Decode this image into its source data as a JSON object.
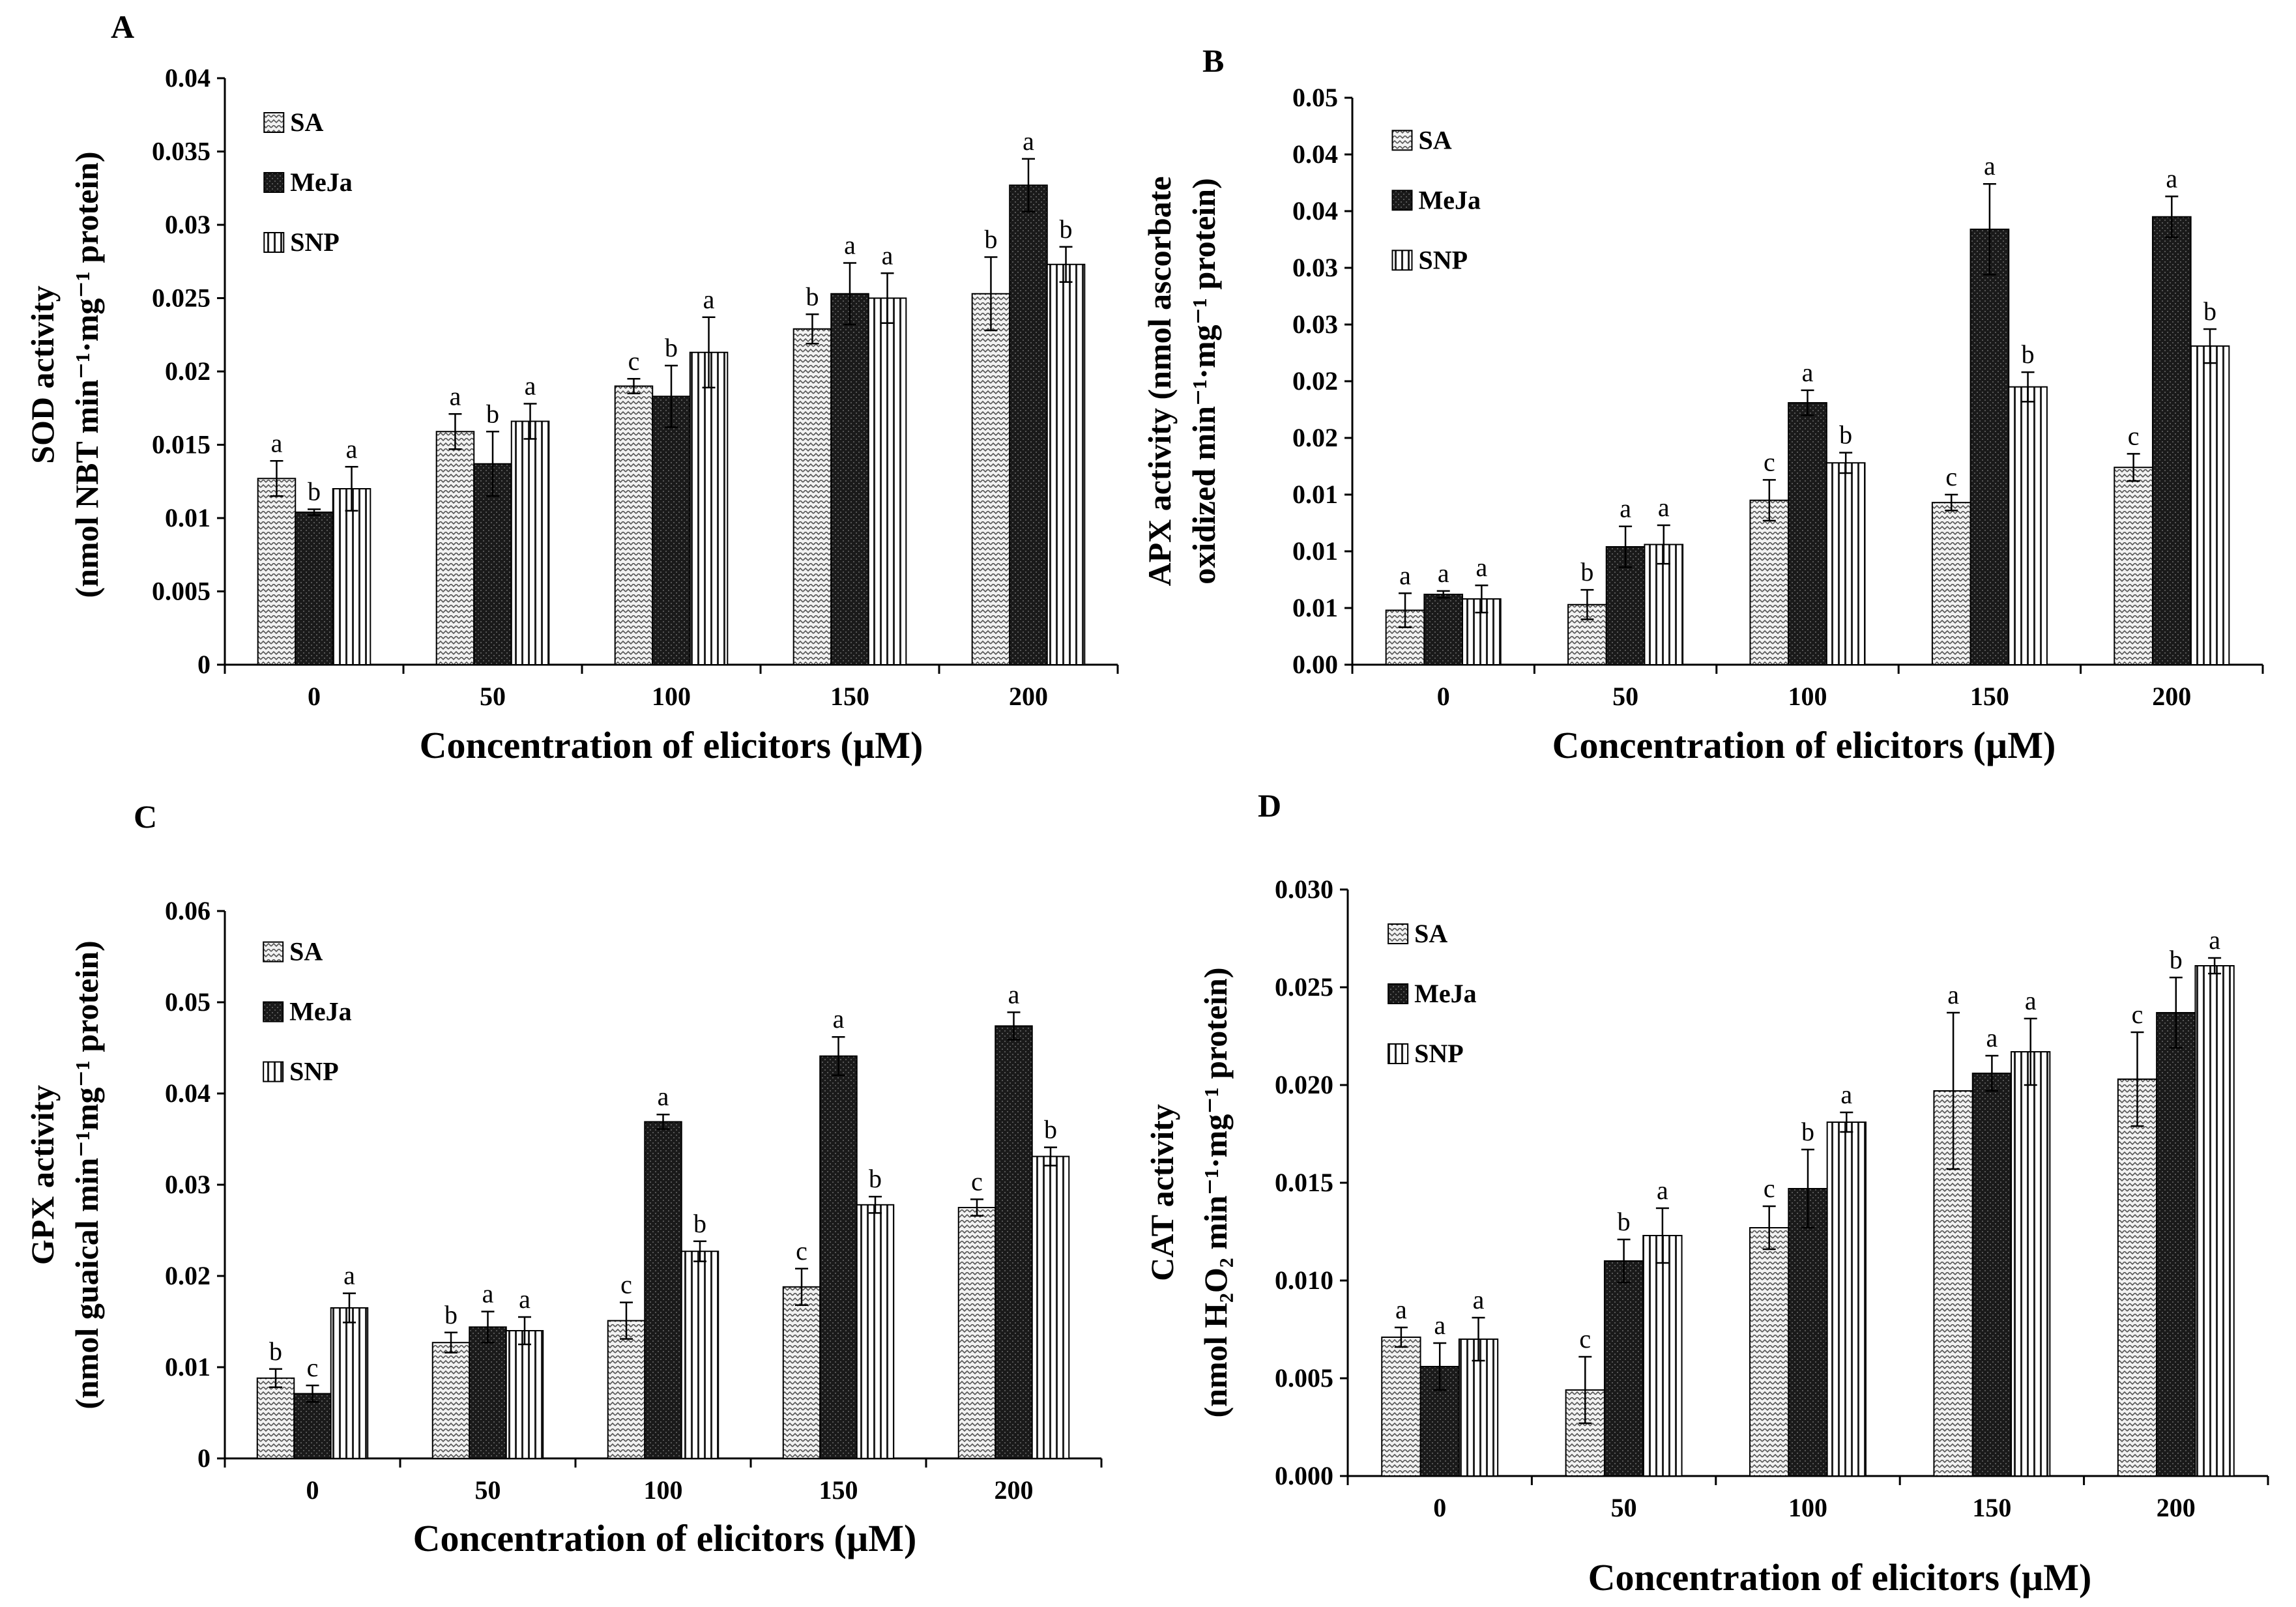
{
  "figure": {
    "series_styles": [
      {
        "name": "SA",
        "pattern": "zigzag-light"
      },
      {
        "name": "MeJa",
        "pattern": "dotted-dark"
      },
      {
        "name": "SNP",
        "pattern": "vertical-lines"
      }
    ],
    "colors": {
      "ink": "#000000",
      "background": "#ffffff",
      "dark_fill": "#1a1a1a"
    }
  },
  "chart_data": [
    {
      "type": "bar",
      "panel": "A",
      "xlabel": "Concentration  of elicitors (µM)",
      "ylabel_line1": "SOD activity",
      "ylabel_line2": "(nmol NBT min⁻¹·mg⁻¹ protein)",
      "categories": [
        "0",
        "50",
        "100",
        "150",
        "200"
      ],
      "ylim": [
        0,
        0.04
      ],
      "yticks": [
        0,
        0.005,
        0.01,
        0.015,
        0.02,
        0.025,
        0.03,
        0.035,
        0.04
      ],
      "ytick_labels": [
        "0",
        "0.005",
        "0.01",
        "0.015",
        "0.02",
        "0.025",
        "0.03",
        "0.035",
        "0.04"
      ],
      "legend": [
        "SA",
        "MeJa",
        "SNP"
      ],
      "legend_position": "top-left",
      "series": [
        {
          "name": "SA",
          "values": [
            0.0127,
            0.0159,
            0.019,
            0.0229,
            0.0253
          ],
          "errors": [
            0.0012,
            0.0012,
            0.0005,
            0.001,
            0.0025
          ],
          "letters": [
            "a",
            "a",
            "c",
            "b",
            "b"
          ]
        },
        {
          "name": "MeJa",
          "values": [
            0.0104,
            0.0137,
            0.0183,
            0.0253,
            0.0327
          ],
          "errors": [
            0.0002,
            0.0022,
            0.0021,
            0.0021,
            0.0018
          ],
          "letters": [
            "b",
            "b",
            "b",
            "a",
            "a"
          ]
        },
        {
          "name": "SNP",
          "values": [
            0.012,
            0.0166,
            0.0213,
            0.025,
            0.0273
          ],
          "errors": [
            0.0015,
            0.0012,
            0.0024,
            0.0017,
            0.0012
          ],
          "letters": [
            "a",
            "a",
            "a",
            "a",
            "b"
          ]
        }
      ]
    },
    {
      "type": "bar",
      "panel": "B",
      "xlabel": "Concentration  of elicitors (µM)",
      "ylabel_line1": "APX activity (nmol ascorbate",
      "ylabel_line2": "oxidized min⁻¹·mg⁻¹ protein)",
      "categories": [
        "0",
        "50",
        "100",
        "150",
        "200"
      ],
      "ylim": [
        0,
        0.05
      ],
      "yticks": [
        0,
        0.005,
        0.01,
        0.015,
        0.02,
        0.025,
        0.03,
        0.035,
        0.04,
        0.045,
        0.05
      ],
      "ytick_labels": [
        "0.00",
        "0.01",
        "0.01",
        "0.01",
        "0.02",
        "0.02",
        "0.03",
        "0.03",
        "0.04",
        "0.04",
        "0.05"
      ],
      "legend": [
        "SA",
        "MeJa",
        "SNP"
      ],
      "legend_position": "top-left",
      "series": [
        {
          "name": "SA",
          "values": [
            0.0048,
            0.0053,
            0.0145,
            0.0143,
            0.0174
          ],
          "errors": [
            0.0015,
            0.0013,
            0.0018,
            0.0007,
            0.0012
          ],
          "letters": [
            "a",
            "b",
            "c",
            "c",
            "c"
          ]
        },
        {
          "name": "MeJa",
          "values": [
            0.0062,
            0.0104,
            0.0231,
            0.0384,
            0.0395
          ],
          "errors": [
            0.0003,
            0.0018,
            0.0011,
            0.004,
            0.0018
          ],
          "letters": [
            "a",
            "a",
            "a",
            "a",
            "a"
          ]
        },
        {
          "name": "SNP",
          "values": [
            0.0058,
            0.0106,
            0.0178,
            0.0245,
            0.0281
          ],
          "errors": [
            0.0012,
            0.0017,
            0.0009,
            0.0013,
            0.0015
          ],
          "letters": [
            "a",
            "a",
            "b",
            "b",
            "b"
          ]
        }
      ]
    },
    {
      "type": "bar",
      "panel": "C",
      "xlabel": "Concentration  of elicitors (µM)",
      "ylabel_line1": "GPX activity",
      "ylabel_line2": "(nmol guaical min⁻¹mg⁻¹ protein)",
      "categories": [
        "0",
        "50",
        "100",
        "150",
        "200"
      ],
      "ylim": [
        0,
        0.06
      ],
      "yticks": [
        0,
        0.01,
        0.02,
        0.03,
        0.04,
        0.05,
        0.06
      ],
      "ytick_labels": [
        "0",
        "0.01",
        "0.02",
        "0.03",
        "0.04",
        "0.05",
        "0.06"
      ],
      "legend": [
        "SA",
        "MeJa",
        "SNP"
      ],
      "legend_position": "top-left",
      "series": [
        {
          "name": "SA",
          "values": [
            0.0088,
            0.0127,
            0.0151,
            0.0188,
            0.0275
          ],
          "errors": [
            0.001,
            0.0011,
            0.002,
            0.002,
            0.0009
          ],
          "letters": [
            "b",
            "b",
            "c",
            "c",
            "c"
          ]
        },
        {
          "name": "MeJa",
          "values": [
            0.0071,
            0.0144,
            0.0369,
            0.0441,
            0.0474
          ],
          "errors": [
            0.0009,
            0.0017,
            0.0008,
            0.0021,
            0.0015
          ],
          "letters": [
            "c",
            "a",
            "a",
            "a",
            "a"
          ]
        },
        {
          "name": "SNP",
          "values": [
            0.0165,
            0.014,
            0.0227,
            0.0278,
            0.0331
          ],
          "errors": [
            0.0016,
            0.0015,
            0.0011,
            0.0009,
            0.001
          ],
          "letters": [
            "a",
            "a",
            "b",
            "b",
            "b"
          ]
        }
      ]
    },
    {
      "type": "bar",
      "panel": "D",
      "xlabel": "Concentration  of elicitors (µM)",
      "ylabel_line1": "CAT activity",
      "ylabel_line2": "(nmol H₂O₂ min⁻¹·mg⁻¹ protein)",
      "categories": [
        "0",
        "50",
        "100",
        "150",
        "200"
      ],
      "ylim": [
        0,
        0.03
      ],
      "yticks": [
        0,
        0.005,
        0.01,
        0.015,
        0.02,
        0.025,
        0.03
      ],
      "ytick_labels": [
        "0.000",
        "0.005",
        "0.010",
        "0.015",
        "0.020",
        "0.025",
        "0.030"
      ],
      "legend": [
        "SA",
        "MeJa",
        "SNP"
      ],
      "legend_position": "top-left",
      "series": [
        {
          "name": "SA",
          "values": [
            0.0071,
            0.0044,
            0.0127,
            0.0197,
            0.0203
          ],
          "errors": [
            0.0005,
            0.0017,
            0.0011,
            0.004,
            0.0024
          ],
          "letters": [
            "a",
            "c",
            "c",
            "a",
            "c"
          ]
        },
        {
          "name": "MeJa",
          "values": [
            0.0056,
            0.011,
            0.0147,
            0.0206,
            0.0237
          ],
          "errors": [
            0.0012,
            0.0011,
            0.002,
            0.0009,
            0.0018
          ],
          "letters": [
            "a",
            "b",
            "b",
            "a",
            "b"
          ]
        },
        {
          "name": "SNP",
          "values": [
            0.007,
            0.0123,
            0.0181,
            0.0217,
            0.0261
          ],
          "errors": [
            0.0011,
            0.0014,
            0.0005,
            0.0017,
            0.0004
          ],
          "letters": [
            "a",
            "a",
            "a",
            "a",
            "a"
          ]
        }
      ]
    }
  ]
}
